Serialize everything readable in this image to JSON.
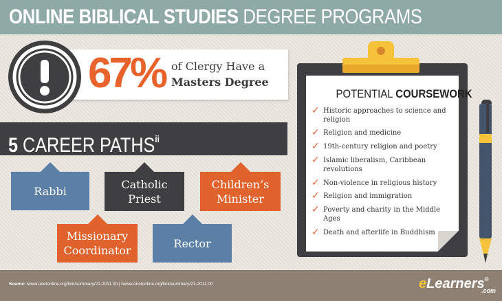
{
  "header": {
    "title_bold": "ONLINE BIBLICAL STUDIES",
    "title_rest": " DEGREE PROGRAMS"
  },
  "stat": {
    "icon": "exclamation-seal-icon",
    "percent": "67%",
    "line1": "of Clergy Have a",
    "line2": "Masters Degree"
  },
  "careers": {
    "count": "5",
    "label": "CAREER PATHS",
    "footnote_marker": "ii",
    "items": [
      {
        "name": "Rabbi"
      },
      {
        "name": "Catholic Priest"
      },
      {
        "name": "Children’s Minister"
      },
      {
        "name": "Missionary Coordinator"
      },
      {
        "name": "Rector"
      }
    ]
  },
  "coursework": {
    "title_plain": "POTENTIAL ",
    "title_bold": "COURSEWORK",
    "check_icon": "checkmark-icon",
    "items": [
      "Historic approaches to science and religion",
      "Religion and medicine",
      "19th-century religion and poetry",
      "Islamic liberalism, Caribbean revolutions",
      "Non-violence in religious history",
      "Religion and immigration",
      "Poverty and charity in the Middle Ages",
      "Death and afterlife in Buddhism"
    ]
  },
  "footer": {
    "source_label": "Source:",
    "source_text": "ʲwww.onetonline.org/link/summary/21-2011.00 | ʲʲwww.onetonline.org/link/summary/21-2011.00",
    "logo_e": "e",
    "logo_rest": "Learners",
    "logo_reg": "®",
    "logo_com": ".com"
  },
  "colors": {
    "title_bar": "#8fa9a6",
    "accent_orange": "#e8622c",
    "dark_gray": "#3f3e40",
    "steel_blue": "#5b7fa5",
    "footer": "#8e8173",
    "clip_yellow": "#f5c23a"
  }
}
